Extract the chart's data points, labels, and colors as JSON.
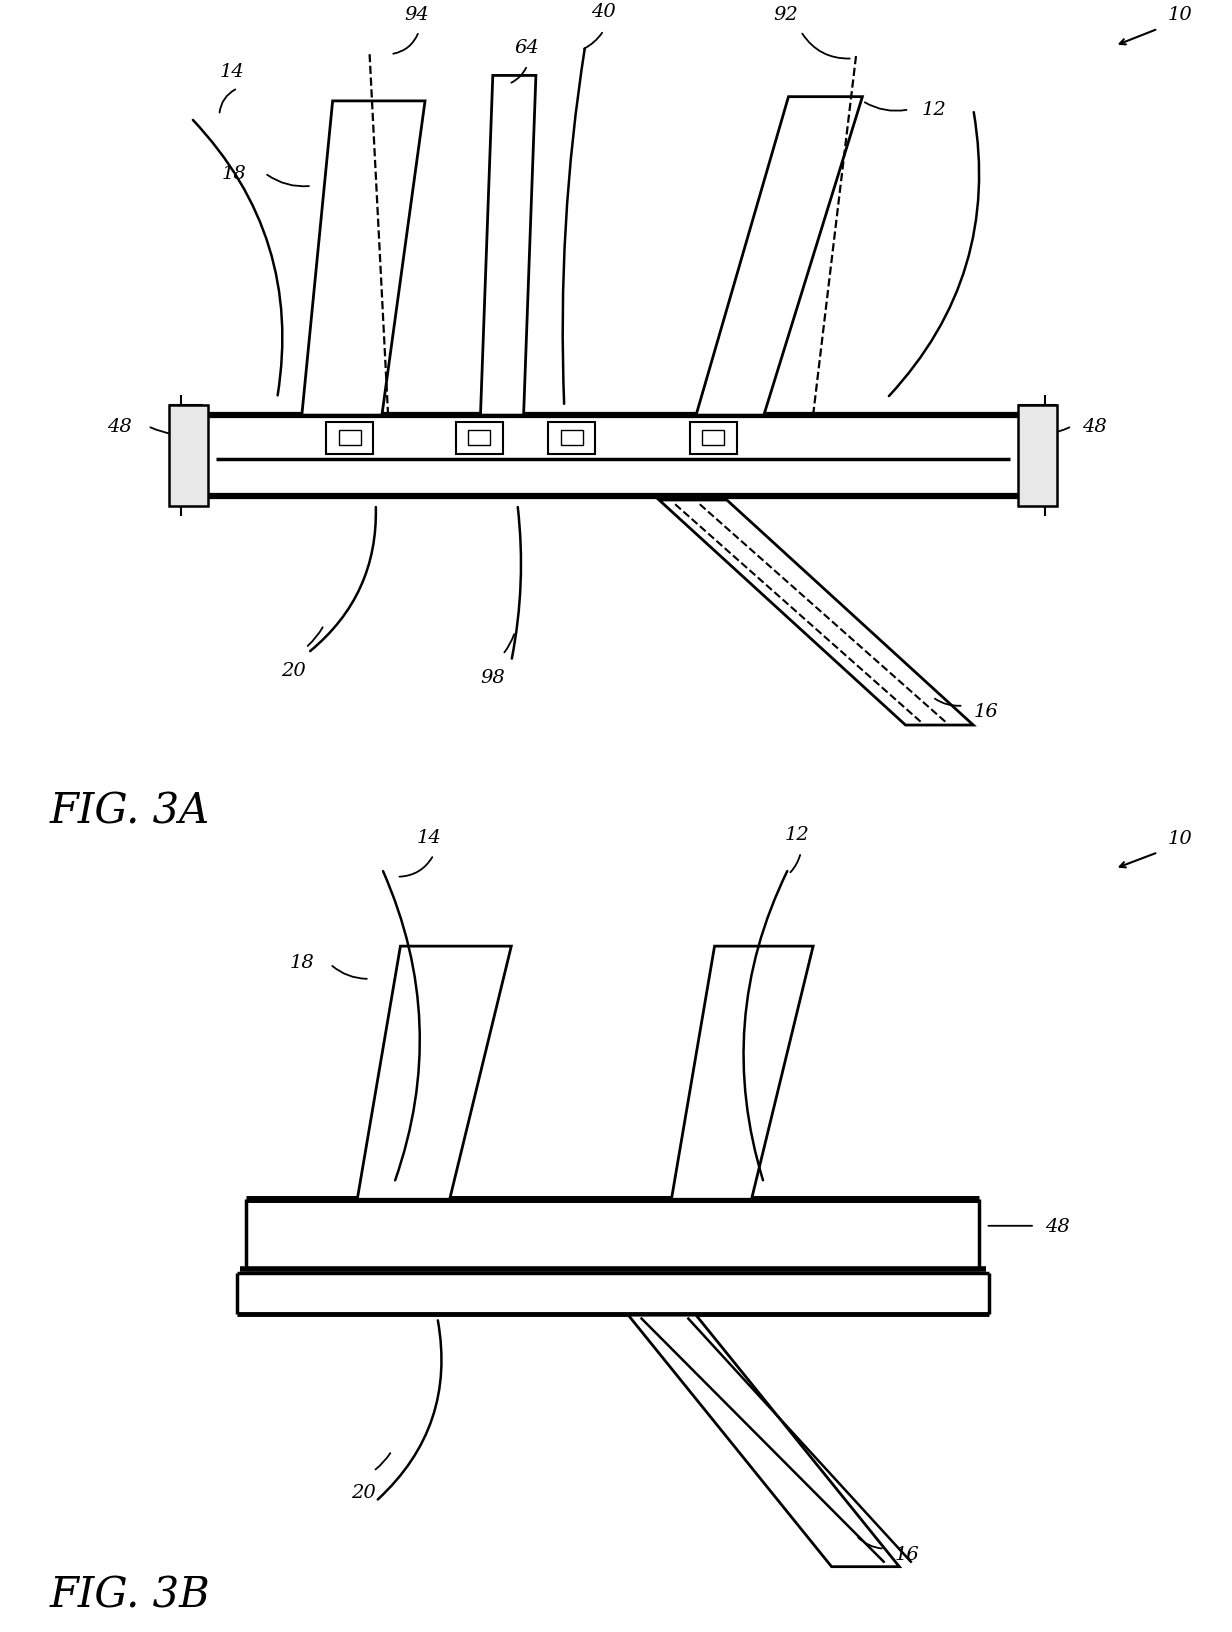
{
  "fig_width": 12.32,
  "fig_height": 16.33,
  "background_color": "#ffffff",
  "line_color": "#000000",
  "line_width": 2.0,
  "label_fontsize": 14,
  "fig_label_fontsize": 30,
  "fig3a_label": "FIG. 3A",
  "fig3b_label": "FIG. 3B"
}
